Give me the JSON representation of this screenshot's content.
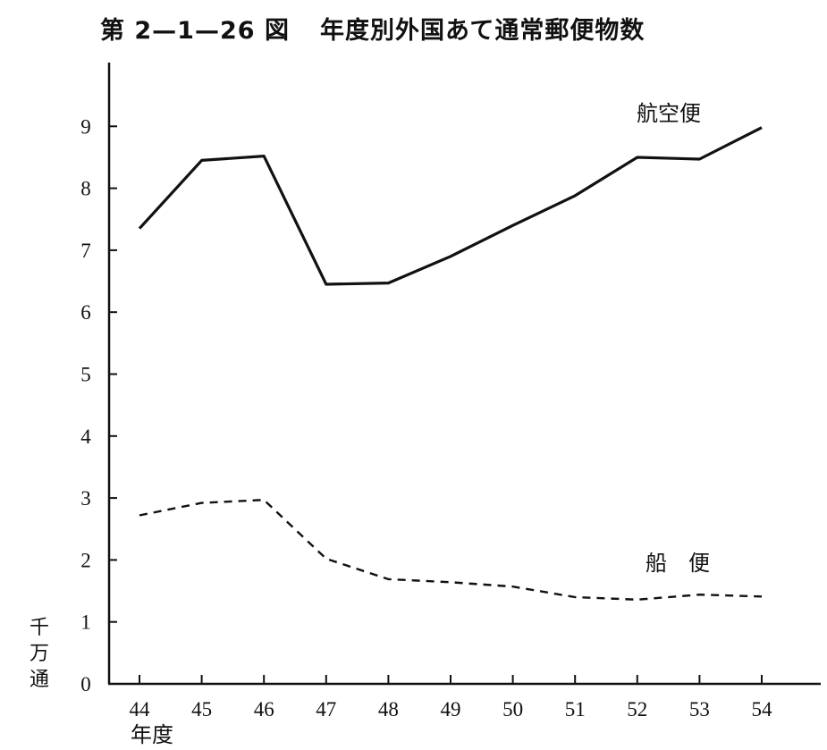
{
  "figure_label": "第 2—1—26 図",
  "figure_title": "年度別外国あて通常郵便物数",
  "chart_data": {
    "type": "line",
    "title": "年度別外国あて通常郵便物数",
    "xlabel": "年度",
    "ylabel": "千万通",
    "ylim": [
      0,
      10
    ],
    "yticks": [
      0,
      1,
      2,
      3,
      4,
      5,
      6,
      7,
      8,
      9
    ],
    "categories": [
      "44",
      "45",
      "46",
      "47",
      "48",
      "49",
      "50",
      "51",
      "52",
      "53",
      "54"
    ],
    "grid": false,
    "series": [
      {
        "name": "航空便",
        "style": "solid",
        "color": "#111111",
        "values": [
          7.35,
          8.45,
          8.52,
          6.45,
          6.47,
          6.9,
          7.4,
          7.88,
          8.5,
          8.47,
          8.98
        ]
      },
      {
        "name": "船　便",
        "style": "dashed",
        "color": "#111111",
        "values": [
          2.72,
          2.92,
          2.97,
          2.02,
          1.69,
          1.64,
          1.57,
          1.4,
          1.36,
          1.44,
          1.41
        ]
      }
    ]
  }
}
